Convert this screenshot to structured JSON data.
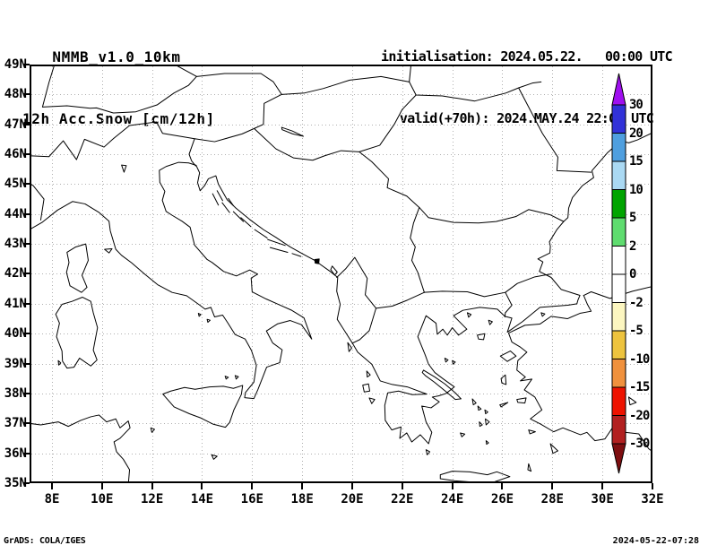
{
  "header": {
    "model": "NMMB_v1.0_10km",
    "field": "12h Acc.Snow [cm/12h]",
    "init": "initialisation: 2024.05.22.   00:00 UTC",
    "valid": "valid(+70h): 2024.MAY.24 22:00 UTC"
  },
  "map": {
    "lon_ticks": [
      "8E",
      "10E",
      "12E",
      "14E",
      "16E",
      "18E",
      "20E",
      "22E",
      "24E",
      "26E",
      "28E",
      "30E",
      "32E"
    ],
    "lat_ticks": [
      "49N",
      "48N",
      "47N",
      "46N",
      "45N",
      "44N",
      "43N",
      "42N",
      "41N",
      "40N",
      "39N",
      "38N",
      "37N",
      "36N",
      "35N"
    ]
  },
  "colorbar": {
    "tick_labels": [
      "30",
      "20",
      "15",
      "10",
      "5",
      "2",
      "0",
      "-2",
      "-5",
      "-10",
      "-15",
      "-20",
      "-30"
    ],
    "segment_colors_top_to_bottom": [
      "#3232d8",
      "#4f9fdf",
      "#aad9f3",
      "#00a400",
      "#5fdc6f",
      "#ffffff",
      "#ffffff",
      "#fcf6c0",
      "#edc33e",
      "#f0913d",
      "#ed1300",
      "#b22020"
    ],
    "arrow_top_color": "#a010f0",
    "arrow_bottom_color": "#7e0e10"
  },
  "footer": {
    "left": "GrADS: COLA/IGES",
    "right": "2024-05-22-07:28"
  }
}
